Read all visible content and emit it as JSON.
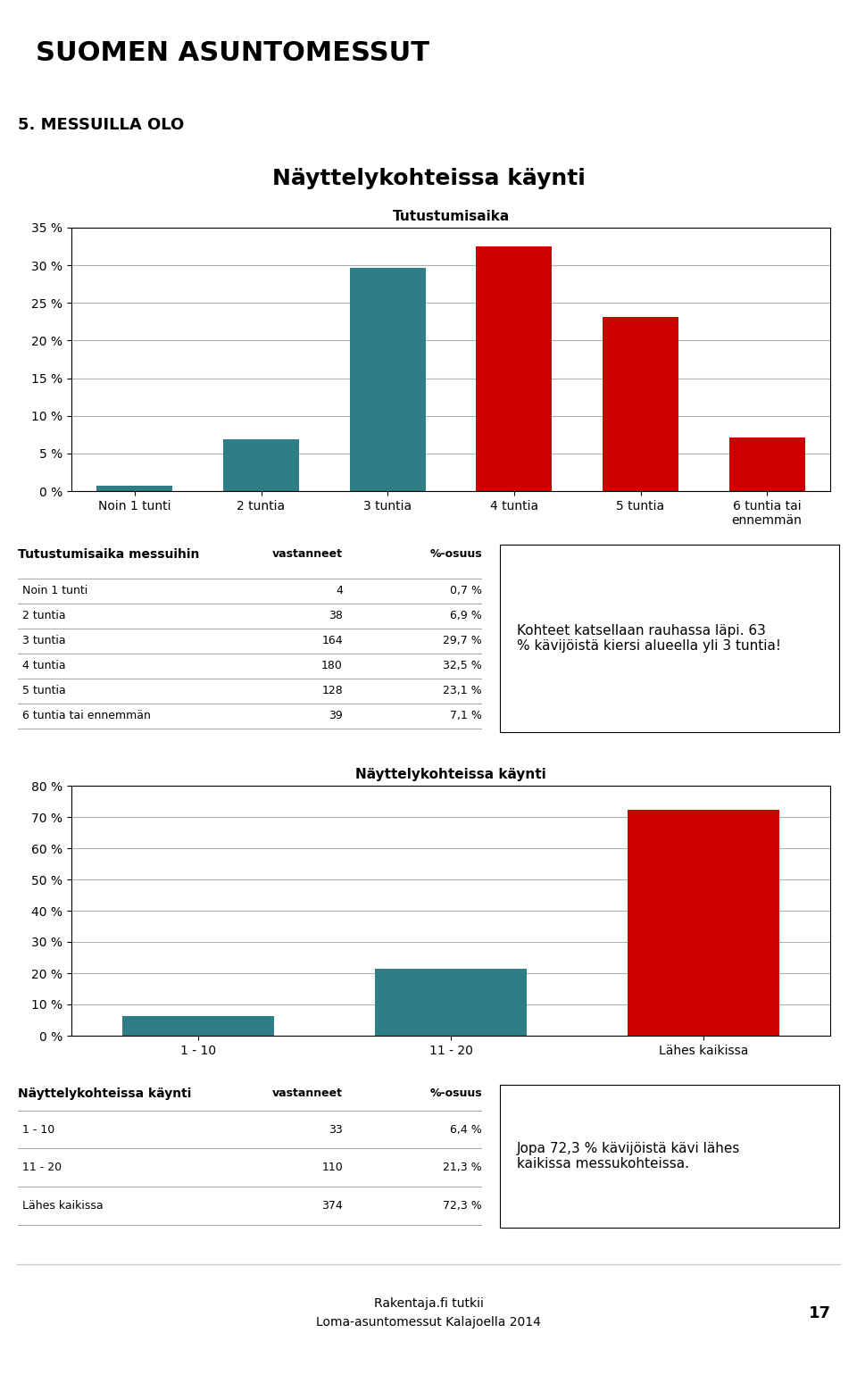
{
  "header": "SUOMEN ASUNTOMESSUT",
  "page_title": "5. MESSUILLA OLO",
  "chart_data": [
    {
      "type": "bar",
      "title": "Näyttelykohteissa käynti",
      "subtitle": "Tutustumisaika",
      "categories": [
        "Noin 1 tunti",
        "2 tuntia",
        "3 tuntia",
        "4 tuntia",
        "5 tuntia",
        "6 tuntia tai\nennemmän"
      ],
      "values": [
        0.7,
        6.9,
        29.7,
        32.5,
        23.1,
        7.1
      ],
      "colors": [
        "#2e7d87",
        "#2e7d87",
        "#2e7d87",
        "#cc0000",
        "#cc0000",
        "#cc0000"
      ],
      "ylim": [
        0,
        35
      ],
      "yticks": [
        {
          "value": 0,
          "label": "0 %"
        },
        {
          "value": 5,
          "label": "5 %"
        },
        {
          "value": 10,
          "label": "10 %"
        },
        {
          "value": 15,
          "label": "15 %"
        },
        {
          "value": 20,
          "label": "20 %"
        },
        {
          "value": 25,
          "label": "25 %"
        },
        {
          "value": 30,
          "label": "30 %"
        },
        {
          "value": 35,
          "label": "35 %"
        }
      ],
      "grid": true
    },
    {
      "type": "bar",
      "title": "Näyttelykohteissa käynti",
      "categories": [
        "1 - 10",
        "11 - 20",
        "Lähes kaikissa"
      ],
      "values": [
        6.4,
        21.3,
        72.3
      ],
      "colors": [
        "#2e7d87",
        "#2e7d87",
        "#cc0000"
      ],
      "ylim": [
        0,
        80
      ],
      "yticks": [
        {
          "value": 0,
          "label": "0 %"
        },
        {
          "value": 10,
          "label": "10 %"
        },
        {
          "value": 20,
          "label": "20 %"
        },
        {
          "value": 30,
          "label": "30 %"
        },
        {
          "value": 40,
          "label": "40 %"
        },
        {
          "value": 50,
          "label": "50 %"
        },
        {
          "value": 60,
          "label": "60 %"
        },
        {
          "value": 70,
          "label": "70 %"
        },
        {
          "value": 80,
          "label": "80 %"
        }
      ],
      "grid": true
    }
  ],
  "tables": [
    {
      "title": "Tutustumisaika messuihin",
      "headers": [
        "vastanneet",
        "%-osuus"
      ],
      "rows": [
        [
          "Noin 1 tunti",
          4,
          "0,7 %"
        ],
        [
          "2 tuntia",
          38,
          "6,9 %"
        ],
        [
          "3 tuntia",
          164,
          "29,7 %"
        ],
        [
          "4 tuntia",
          180,
          "32,5 %"
        ],
        [
          "5 tuntia",
          128,
          "23,1 %"
        ],
        [
          "6 tuntia tai ennemmän",
          39,
          "7,1 %"
        ]
      ]
    },
    {
      "title": "Näyttelykohteissa käynti",
      "headers": [
        "vastanneet",
        "%-osuus"
      ],
      "rows": [
        [
          "1 - 10",
          33,
          "6,4 %"
        ],
        [
          "11 - 20",
          110,
          "21,3 %"
        ],
        [
          "Lähes kaikissa",
          374,
          "72,3 %"
        ]
      ]
    }
  ],
  "annotations": [
    "Kohteet katsellaan rauhassa läpi. 63\n% kävijöistä kiersi alueella yli 3 tuntia!",
    "Jopa 72,3 % kävijöistä kävi lähes\nkaikissa messukohteissa."
  ],
  "footer": "Rakentaja.fi tutkii\nLoma-asuntomessut Kalajoella 2014",
  "page_number": "17"
}
